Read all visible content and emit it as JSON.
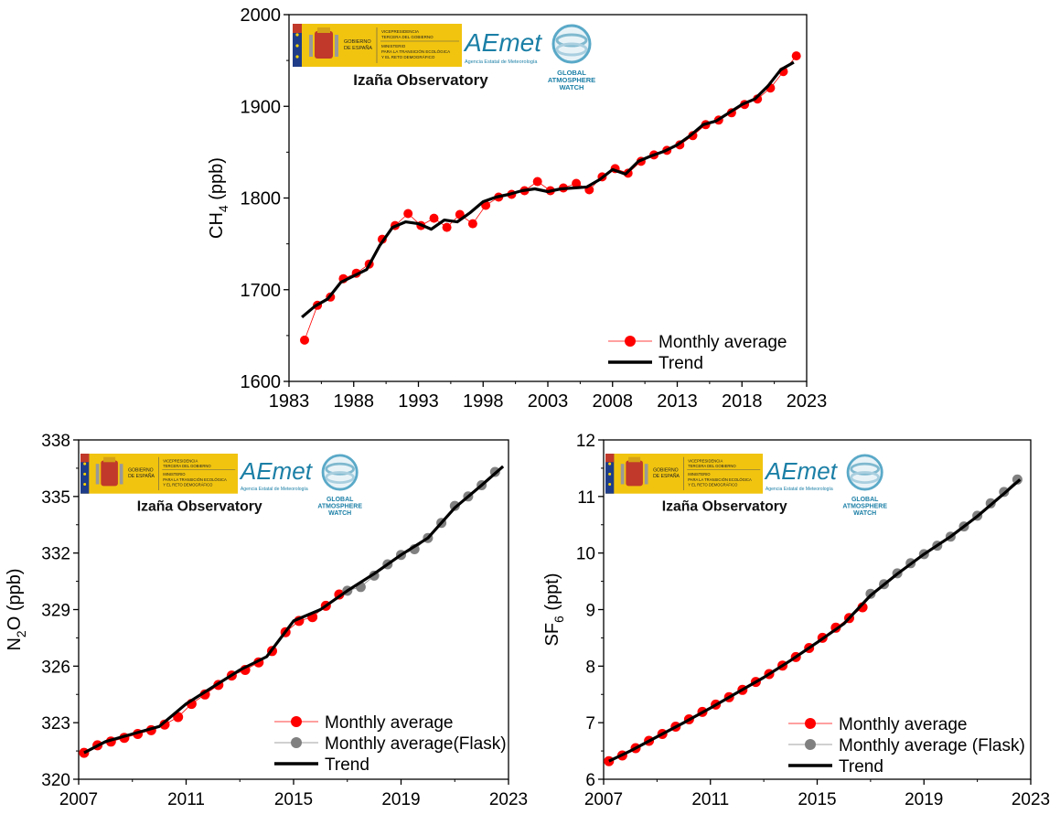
{
  "colors": {
    "monthly": "#ff0000",
    "flask": "#808080",
    "trend": "#000000",
    "logo_gold": "#f1c40f",
    "logo_blue": "#1f3c88",
    "aemet_teal": "#1b7fa6"
  },
  "logos": {
    "gov_line1": "VICEPRESIDENCIA",
    "gov_line2": "TERCERA DEL GOBIERNO",
    "gov_line3": "MINISTERIO",
    "gov_line4": "PARA LA TRANSICIÓN ECOLÓGICA",
    "gov_line5": "Y EL RETO DEMOGRÁFICO",
    "gov_name1": "GOBIERNO",
    "gov_name2": "DE ESPAÑA",
    "aemet_brand": "AEmet",
    "aemet_sub": "Agencia Estatal de Meteorología",
    "gaw1": "GLOBAL",
    "gaw2": "ATMOSPHERE",
    "gaw3": "WATCH"
  },
  "chart_data": [
    {
      "type": "line",
      "station": "Izaña Observatory",
      "ylabel": "CH4 (ppb)",
      "ylabel_main": "CH",
      "ylabel_sub": "4",
      "ylabel_unit": " (ppb)",
      "xlim": [
        1983,
        2023
      ],
      "ylim": [
        1600,
        2000
      ],
      "xticks": [
        "1983",
        "1988",
        "1993",
        "1998",
        "2003",
        "2008",
        "2013",
        "2018",
        "2023"
      ],
      "yticks": [
        "1600",
        "1700",
        "1800",
        "1900",
        "2000"
      ],
      "grid": false,
      "legend_position": "bottom-right",
      "legend": [
        "Monthly average",
        "Trend"
      ],
      "series": [
        {
          "name": "Monthly average",
          "style": "points",
          "x": [
            1984.2,
            1985.2,
            1986.2,
            1987.2,
            1988.2,
            1989.2,
            1990.2,
            1991.2,
            1992.2,
            1993.2,
            1994.2,
            1995.2,
            1996.2,
            1997.2,
            1998.2,
            1999.2,
            2000.2,
            2001.2,
            2002.2,
            2003.2,
            2004.2,
            2005.2,
            2006.2,
            2007.2,
            2008.2,
            2009.2,
            2010.2,
            2011.2,
            2012.2,
            2013.2,
            2014.2,
            2015.2,
            2016.2,
            2017.2,
            2018.2,
            2019.2,
            2020.2,
            2021.2,
            2022.2
          ],
          "y": [
            1645,
            1683,
            1692,
            1712,
            1718,
            1728,
            1755,
            1770,
            1783,
            1770,
            1778,
            1768,
            1782,
            1772,
            1792,
            1801,
            1804,
            1808,
            1818,
            1808,
            1811,
            1816,
            1809,
            1823,
            1832,
            1827,
            1840,
            1847,
            1852,
            1858,
            1868,
            1880,
            1885,
            1893,
            1902,
            1908,
            1920,
            1938,
            1955
          ]
        },
        {
          "name": "Trend",
          "style": "line",
          "x": [
            1984.0,
            1985.0,
            1986.0,
            1987.0,
            1988.0,
            1989.0,
            1990.0,
            1991.0,
            1992.0,
            1993.0,
            1994.0,
            1995.0,
            1996.0,
            1997.0,
            1998.0,
            1999.0,
            2000.0,
            2001.0,
            2002.0,
            2003.0,
            2004.0,
            2005.0,
            2006.0,
            2007.0,
            2008.0,
            2009.0,
            2010.0,
            2011.0,
            2012.0,
            2013.0,
            2014.0,
            2015.0,
            2016.0,
            2017.0,
            2018.0,
            2019.0,
            2020.0,
            2021.0,
            2022.0
          ],
          "y": [
            1670,
            1682,
            1690,
            1708,
            1715,
            1722,
            1748,
            1768,
            1774,
            1772,
            1766,
            1776,
            1774,
            1784,
            1796,
            1801,
            1804,
            1808,
            1810,
            1807,
            1810,
            1811,
            1812,
            1820,
            1831,
            1826,
            1840,
            1846,
            1851,
            1858,
            1868,
            1880,
            1884,
            1893,
            1902,
            1908,
            1922,
            1940,
            1948
          ]
        }
      ]
    },
    {
      "type": "line",
      "station": "Izaña Observatory",
      "ylabel": "N2O (ppb)",
      "ylabel_main": "N",
      "ylabel_sub": "2",
      "ylabel_unit": "O (ppb)",
      "xlim": [
        2007,
        2023
      ],
      "ylim": [
        320,
        338
      ],
      "xticks": [
        "2007",
        "2011",
        "2015",
        "2019",
        "2023"
      ],
      "yticks": [
        "320",
        "323",
        "326",
        "329",
        "332",
        "335",
        "338"
      ],
      "grid": false,
      "legend_position": "bottom-right",
      "legend": [
        "Monthly average",
        "Monthly average(Flask)",
        "Trend"
      ],
      "series": [
        {
          "name": "Monthly average",
          "style": "points",
          "x": [
            2007.2,
            2007.7,
            2008.2,
            2008.7,
            2009.2,
            2009.7,
            2010.2,
            2010.7,
            2011.2,
            2011.7,
            2012.2,
            2012.7,
            2013.2,
            2013.7,
            2014.2,
            2014.7,
            2015.2,
            2015.7,
            2016.2,
            2016.7
          ],
          "y": [
            321.4,
            321.8,
            322.0,
            322.2,
            322.4,
            322.6,
            322.9,
            323.3,
            324.0,
            324.5,
            325.0,
            325.5,
            325.8,
            326.2,
            326.8,
            327.8,
            328.4,
            328.6,
            329.2,
            329.8
          ]
        },
        {
          "name": "Monthly average(Flask)",
          "style": "points",
          "x": [
            2017.0,
            2017.5,
            2018.0,
            2018.5,
            2019.0,
            2019.5,
            2020.0,
            2020.5,
            2021.0,
            2021.5,
            2022.0,
            2022.5
          ],
          "y": [
            330.0,
            330.2,
            330.8,
            331.4,
            331.9,
            332.2,
            332.8,
            333.6,
            334.5,
            335.0,
            335.6,
            336.3
          ]
        },
        {
          "name": "Trend",
          "style": "line",
          "x": [
            2007.2,
            2008.0,
            2009.0,
            2010.0,
            2011.0,
            2012.0,
            2013.0,
            2014.0,
            2015.0,
            2016.0,
            2017.0,
            2018.0,
            2019.0,
            2020.0,
            2021.0,
            2022.0,
            2022.8
          ],
          "y": [
            321.4,
            322.0,
            322.4,
            322.8,
            324.0,
            324.9,
            325.8,
            326.5,
            328.4,
            329.0,
            330.0,
            330.9,
            331.9,
            332.8,
            334.4,
            335.6,
            336.6
          ]
        }
      ]
    },
    {
      "type": "line",
      "station": "Izaña Observatory",
      "ylabel": "SF6 (ppt)",
      "ylabel_main": "SF",
      "ylabel_sub": "6",
      "ylabel_unit": " (ppt)",
      "xlim": [
        2007,
        2023
      ],
      "ylim": [
        6,
        12
      ],
      "xticks": [
        "2007",
        "2011",
        "2015",
        "2019",
        "2023"
      ],
      "yticks": [
        "6",
        "7",
        "8",
        "9",
        "10",
        "11",
        "12"
      ],
      "grid": false,
      "legend_position": "bottom-right",
      "legend": [
        "Monthly average",
        "Monthly average (Flask)",
        "Trend"
      ],
      "series": [
        {
          "name": "Monthly average",
          "style": "points",
          "x": [
            2007.2,
            2007.7,
            2008.2,
            2008.7,
            2009.2,
            2009.7,
            2010.2,
            2010.7,
            2011.2,
            2011.7,
            2012.2,
            2012.7,
            2013.2,
            2013.7,
            2014.2,
            2014.7,
            2015.2,
            2015.7,
            2016.2,
            2016.7
          ],
          "y": [
            6.32,
            6.42,
            6.55,
            6.68,
            6.8,
            6.93,
            7.06,
            7.19,
            7.32,
            7.45,
            7.58,
            7.72,
            7.86,
            8.01,
            8.16,
            8.32,
            8.5,
            8.68,
            8.85,
            9.04
          ]
        },
        {
          "name": "Monthly average (Flask)",
          "style": "points",
          "x": [
            2017.0,
            2017.5,
            2018.0,
            2018.5,
            2019.0,
            2019.5,
            2020.0,
            2020.5,
            2021.0,
            2021.5,
            2022.0,
            2022.5
          ],
          "y": [
            9.28,
            9.45,
            9.64,
            9.82,
            9.98,
            10.13,
            10.29,
            10.47,
            10.66,
            10.88,
            11.08,
            11.3
          ]
        },
        {
          "name": "Trend",
          "style": "line",
          "x": [
            2007.2,
            2008.0,
            2009.0,
            2010.0,
            2011.0,
            2012.0,
            2013.0,
            2014.0,
            2015.0,
            2016.0,
            2017.0,
            2018.0,
            2019.0,
            2020.0,
            2021.0,
            2022.0,
            2022.6
          ],
          "y": [
            6.32,
            6.5,
            6.75,
            7.0,
            7.26,
            7.53,
            7.8,
            8.1,
            8.42,
            8.75,
            9.25,
            9.63,
            9.98,
            10.29,
            10.65,
            11.05,
            11.3
          ]
        }
      ]
    }
  ]
}
